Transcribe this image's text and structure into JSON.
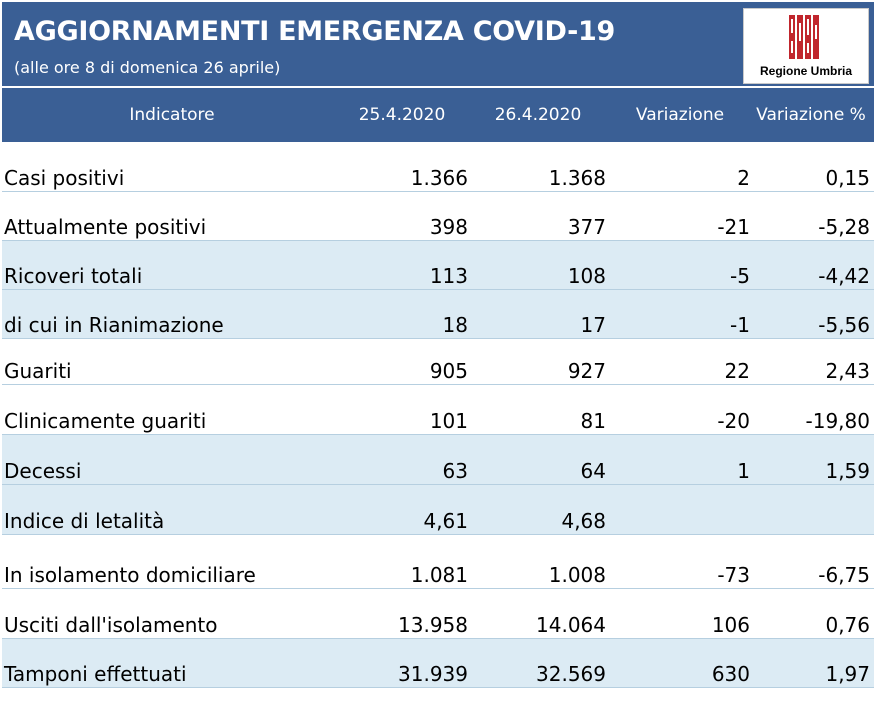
{
  "header": {
    "title": "AGGIORNAMENTI EMERGENZA COVID-19",
    "subtitle": "(alle ore 8 di domenica 26 aprile)",
    "logo_text": "Regione Umbria"
  },
  "colors": {
    "header_bg": "#3a5f95",
    "row_shade": "#dcebf4",
    "logo_red": "#c0262d"
  },
  "table": {
    "columns": [
      "Indicatore",
      "25.4.2020",
      "26.4.2020",
      "Variazione",
      "Variazione %"
    ],
    "rows": [
      [
        "Casi positivi",
        "1.366",
        "1.368",
        "2",
        "0,15"
      ],
      [
        "Attualmente positivi",
        "398",
        "377",
        "-21",
        "-5,28"
      ],
      [
        "Ricoveri totali",
        "113",
        "108",
        "-5",
        "-4,42"
      ],
      [
        "di cui in Rianimazione",
        "18",
        "17",
        "-1",
        "-5,56"
      ],
      [
        "Guariti",
        "905",
        "927",
        "22",
        "2,43"
      ],
      [
        "Clinicamente guariti",
        "101",
        "81",
        "-20",
        "-19,80"
      ],
      [
        "Decessi",
        "63",
        "64",
        "1",
        "1,59"
      ],
      [
        "Indice di letalità",
        "4,61",
        "4,68",
        "",
        ""
      ],
      [
        "In isolamento domiciliare",
        "1.081",
        "1.008",
        "-73",
        "-6,75"
      ],
      [
        "Usciti dall'isolamento",
        "13.958",
        "14.064",
        "106",
        "0,76"
      ],
      [
        "Tamponi effettuati",
        "31.939",
        "32.569",
        "630",
        "1,97"
      ]
    ]
  }
}
